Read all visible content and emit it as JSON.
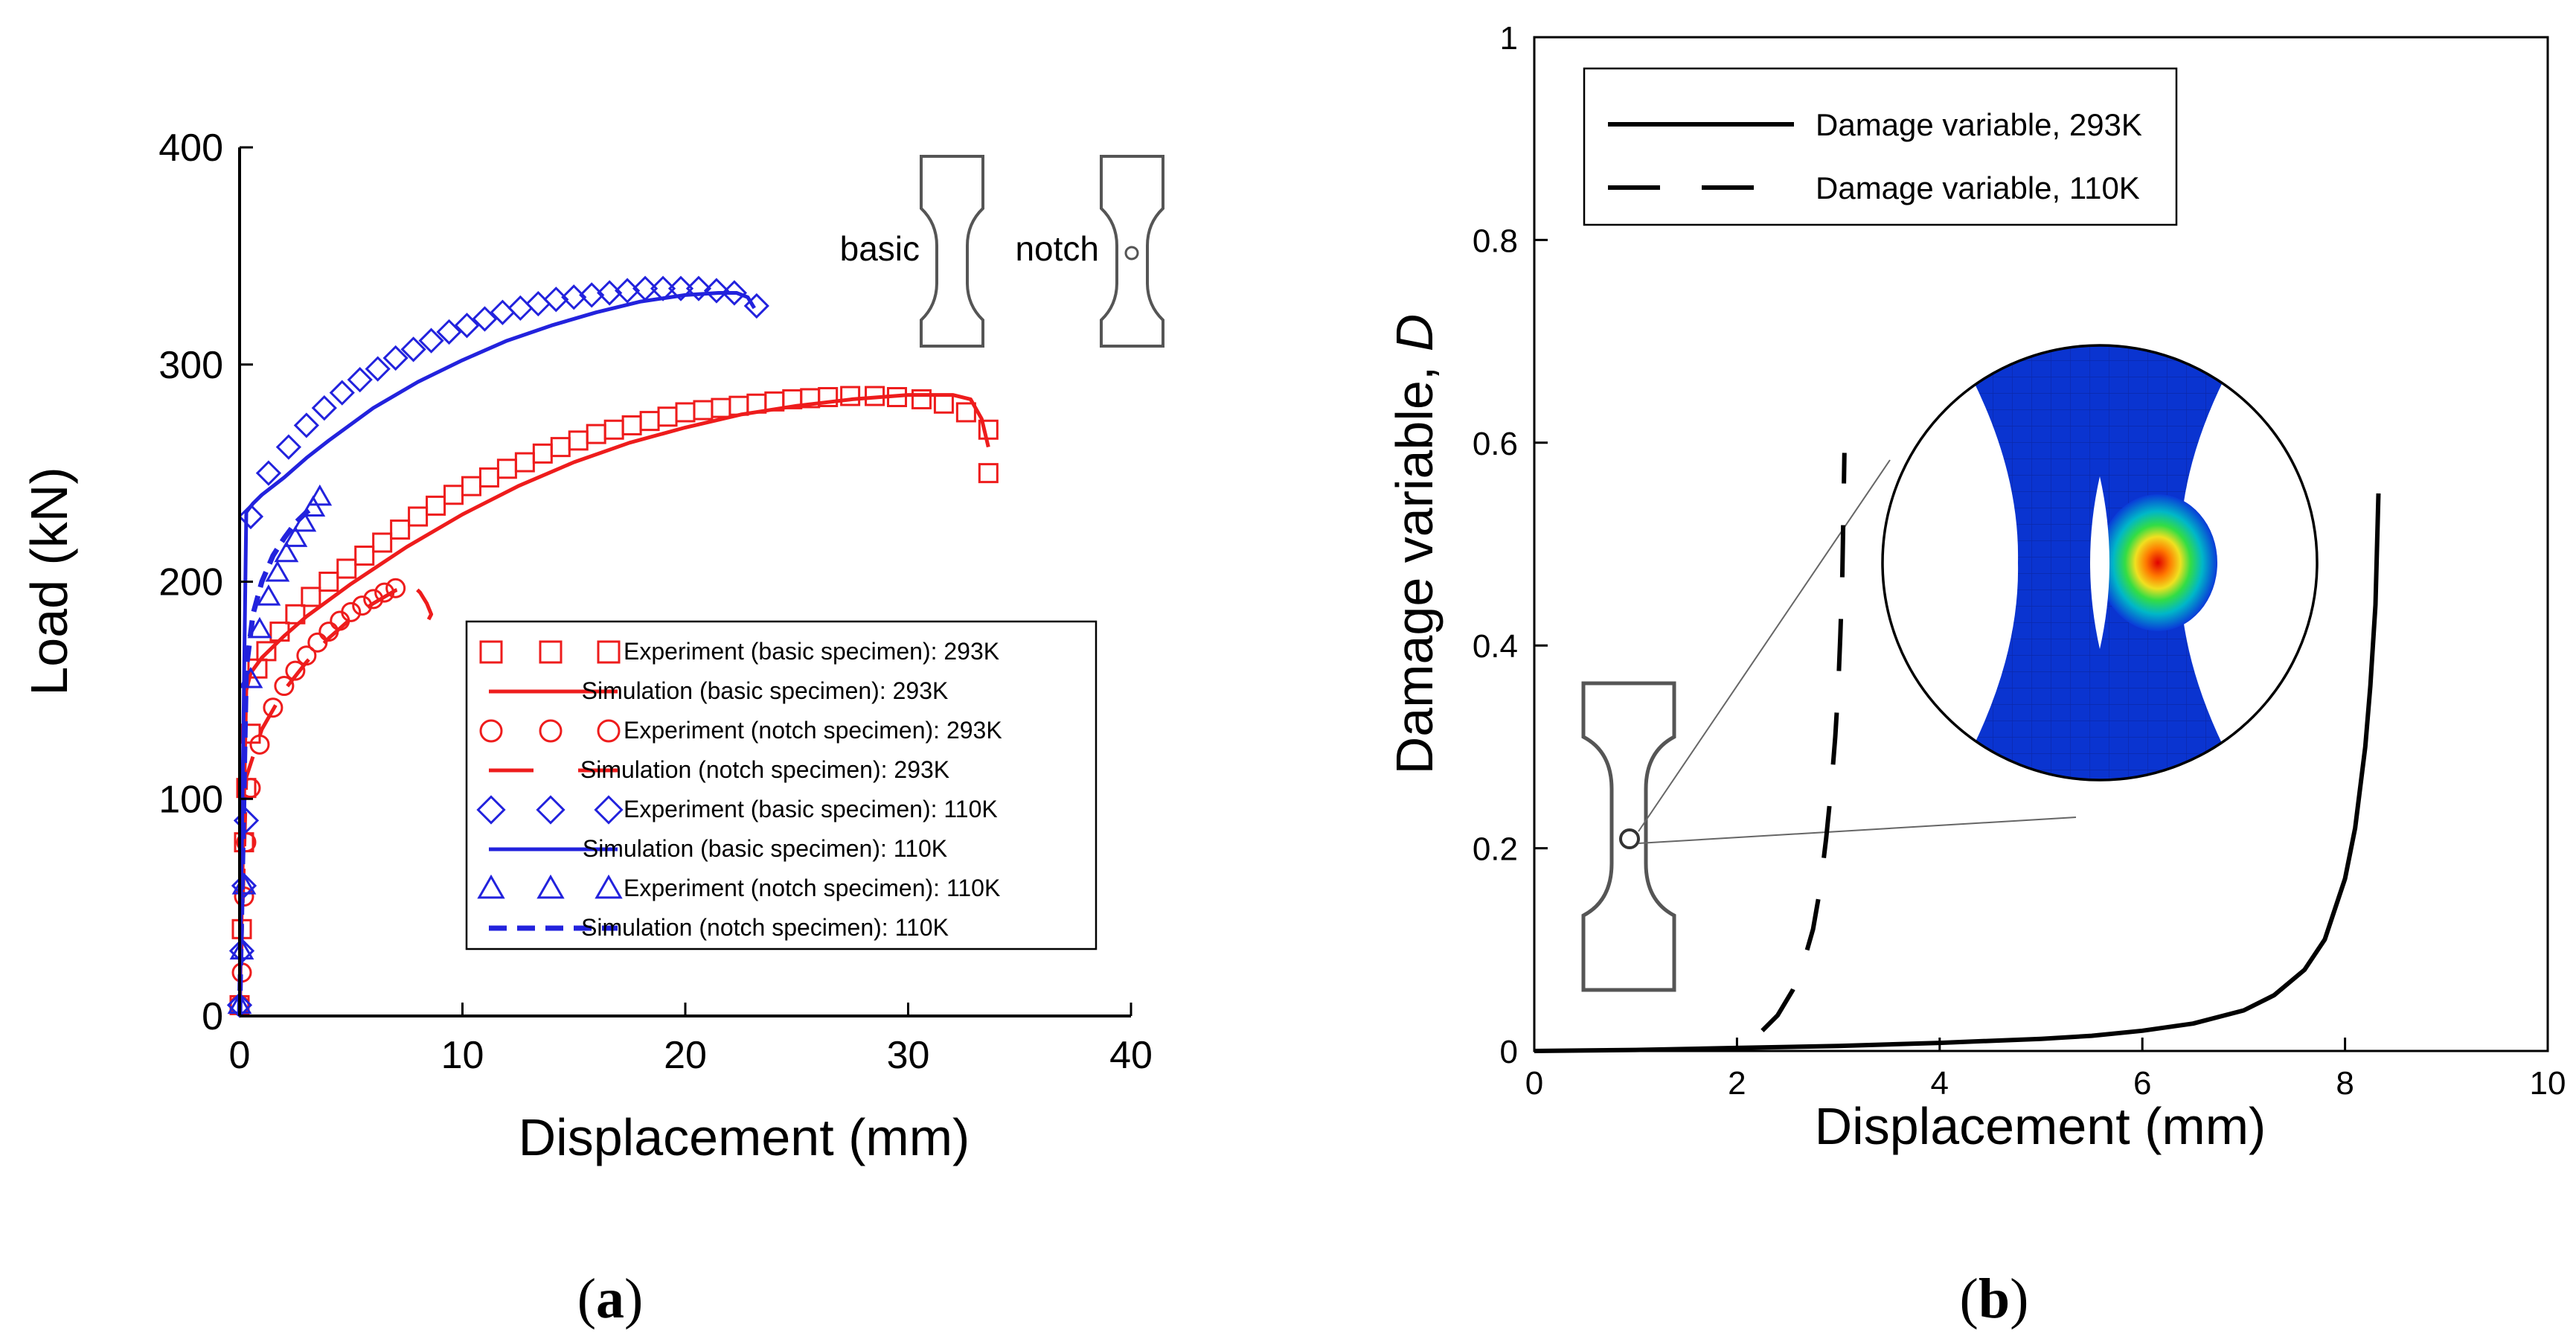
{
  "panels": {
    "a": {
      "caption_open": "(",
      "caption_letter": "a",
      "caption_close": ")"
    },
    "b": {
      "caption_open": "(",
      "caption_letter": "b",
      "caption_close": ")"
    }
  },
  "colors": {
    "red": "#ee1c1c",
    "blue": "#2222dd",
    "black": "#000000",
    "specimen": "#555555"
  },
  "chart_data": [
    {
      "id": "a",
      "type": "line",
      "xlabel": "Displacement (mm)",
      "ylabel": "Load (kN)",
      "xlim": [
        0,
        40
      ],
      "ylim": [
        0,
        400
      ],
      "xticks": [
        0,
        10,
        20,
        30,
        40
      ],
      "yticks": [
        0,
        100,
        200,
        300,
        400
      ],
      "inset_labels": {
        "basic": "basic",
        "notch": "notch"
      },
      "legend_position": "bottom-right",
      "series": [
        {
          "name": "Experiment (basic specimen): 293K",
          "kind": "markers",
          "marker": "square",
          "color": "#ee1c1c",
          "x": [
            0,
            0.1,
            0.2,
            0.3,
            0.5,
            0.8,
            1.2,
            1.8,
            2.5,
            3.2,
            4.0,
            4.8,
            5.6,
            6.4,
            7.2,
            8.0,
            8.8,
            9.6,
            10.4,
            11.2,
            12.0,
            12.8,
            13.6,
            14.4,
            15.2,
            16.0,
            16.8,
            17.6,
            18.4,
            19.2,
            20.0,
            20.8,
            21.6,
            22.4,
            23.2,
            24.0,
            24.8,
            25.6,
            26.4,
            27.4,
            28.5,
            29.5,
            30.6,
            31.6,
            32.6,
            33.6,
            33.6
          ],
          "y": [
            5,
            40,
            80,
            105,
            130,
            160,
            168,
            177,
            185,
            193,
            200,
            206,
            212,
            218,
            224,
            230,
            235,
            240,
            244,
            248,
            252,
            255,
            259,
            262,
            265,
            268,
            270,
            272,
            274,
            276,
            278,
            279,
            280,
            281,
            282,
            283,
            284,
            284.5,
            285,
            285.5,
            285.5,
            285,
            284,
            282,
            278,
            270,
            250
          ]
        },
        {
          "name": "Simulation (basic specimen): 293K",
          "kind": "line",
          "dash": "solid",
          "color": "#ee1c1c",
          "x": [
            0,
            0.3,
            0.5,
            1,
            2,
            3,
            5,
            7.5,
            10,
            12.5,
            15,
            17.5,
            20,
            22.5,
            25,
            27.5,
            30,
            32,
            32.8,
            33.3,
            33.6
          ],
          "y": [
            0,
            150,
            158,
            165,
            175,
            184,
            199,
            216,
            231,
            244,
            255,
            264,
            271,
            277,
            281,
            284,
            286,
            286,
            284,
            275,
            262
          ]
        },
        {
          "name": "Experiment (notch specimen): 293K",
          "kind": "markers",
          "marker": "circle",
          "color": "#ee1c1c",
          "x": [
            0,
            0.1,
            0.2,
            0.3,
            0.5,
            0.9,
            1.5,
            2.0,
            2.5,
            3.0,
            3.5,
            4.0,
            4.5,
            5.0,
            5.5,
            6.0,
            6.5,
            7.0
          ],
          "y": [
            5,
            20,
            55,
            80,
            105,
            125,
            142,
            152,
            159,
            166,
            172,
            177,
            182,
            186,
            189,
            192,
            195,
            197
          ]
        },
        {
          "name": "Simulation (notch specimen): 293K",
          "kind": "line",
          "dash": "long",
          "color": "#ee1c1c",
          "x": [
            0,
            0.3,
            1,
            2,
            3,
            4,
            5,
            6,
            7,
            7.8,
            8.1,
            8.4,
            8.6,
            8.4
          ],
          "y": [
            0,
            110,
            132,
            150,
            163,
            174,
            183,
            190,
            196,
            198,
            195,
            190,
            185,
            181
          ]
        },
        {
          "name": "Experiment (basic specimen): 110K",
          "kind": "markers",
          "marker": "diamond",
          "color": "#2222dd",
          "x": [
            0,
            0.1,
            0.2,
            0.3,
            0.5,
            1.3,
            2.2,
            3.0,
            3.8,
            4.6,
            5.4,
            6.2,
            7.0,
            7.8,
            8.6,
            9.4,
            10.2,
            11.0,
            11.8,
            12.6,
            13.4,
            14.2,
            15.0,
            15.8,
            16.6,
            17.4,
            18.2,
            19.0,
            19.8,
            20.6,
            21.4,
            22.2,
            23.2
          ],
          "y": [
            5,
            30,
            60,
            90,
            230,
            250,
            262,
            272,
            280,
            287,
            293,
            298,
            303,
            307,
            311,
            315,
            318,
            321,
            324,
            326,
            328,
            330,
            331,
            332,
            333,
            334,
            335,
            335,
            335,
            335,
            334,
            333,
            327
          ]
        },
        {
          "name": "Simulation (basic specimen): 110K",
          "kind": "line",
          "dash": "solid",
          "color": "#2222dd",
          "x": [
            0,
            0.3,
            0.6,
            1,
            2,
            3,
            4,
            6,
            8,
            10,
            12,
            14,
            16,
            18,
            20,
            21.5,
            22.3,
            22.8,
            23.1
          ],
          "y": [
            0,
            232,
            236,
            240,
            248,
            257,
            265,
            280,
            292,
            302,
            311,
            318,
            324,
            329,
            332,
            333,
            333,
            331,
            326
          ]
        },
        {
          "name": "Experiment (notch specimen): 110K",
          "kind": "markers",
          "marker": "triangle",
          "color": "#2222dd",
          "x": [
            0,
            0.1,
            0.2,
            0.5,
            0.9,
            1.3,
            1.7,
            2.1,
            2.5,
            2.9,
            3.3,
            3.6
          ],
          "y": [
            5,
            30,
            60,
            155,
            178,
            193,
            204,
            213,
            220,
            227,
            234,
            239
          ]
        },
        {
          "name": "Simulation (notch specimen): 110K",
          "kind": "line",
          "dash": "short",
          "color": "#2222dd",
          "x": [
            0,
            0.3,
            0.6,
            1.0,
            1.5,
            2.0,
            2.5,
            3.0,
            3.4
          ],
          "y": [
            0,
            160,
            185,
            200,
            212,
            220,
            227,
            232,
            235
          ]
        }
      ]
    },
    {
      "id": "b",
      "type": "line",
      "xlabel": "Displacement (mm)",
      "ylabel_text": "Damage variable, ",
      "ylabel_symbol": "D",
      "xlim": [
        0,
        10
      ],
      "ylim": [
        0,
        1
      ],
      "xticks": [
        0,
        2,
        4,
        6,
        8,
        10
      ],
      "yticks": [
        "0",
        "0.2",
        "0.4",
        "0.6",
        "0.8",
        "1"
      ],
      "legend_position": "top-left",
      "series": [
        {
          "name": "Damage variable, 293K",
          "dash": "solid",
          "color": "#000000",
          "x": [
            0,
            1,
            2,
            3,
            4,
            5,
            5.5,
            6,
            6.5,
            7,
            7.3,
            7.6,
            7.8,
            8.0,
            8.1,
            8.2,
            8.25,
            8.3,
            8.33
          ],
          "y": [
            0,
            0.001,
            0.003,
            0.005,
            0.008,
            0.012,
            0.015,
            0.02,
            0.027,
            0.04,
            0.055,
            0.08,
            0.11,
            0.17,
            0.22,
            0.3,
            0.36,
            0.44,
            0.55
          ]
        },
        {
          "name": "Damage variable, 110K",
          "dash": "long",
          "color": "#000000",
          "x": [
            2.25,
            2.4,
            2.55,
            2.65,
            2.75,
            2.82,
            2.88,
            2.93,
            2.97,
            3.0,
            3.02,
            3.04,
            3.05,
            3.06
          ],
          "y": [
            0.02,
            0.035,
            0.06,
            0.085,
            0.12,
            0.16,
            0.21,
            0.26,
            0.31,
            0.36,
            0.41,
            0.47,
            0.53,
            0.59
          ]
        }
      ]
    }
  ]
}
